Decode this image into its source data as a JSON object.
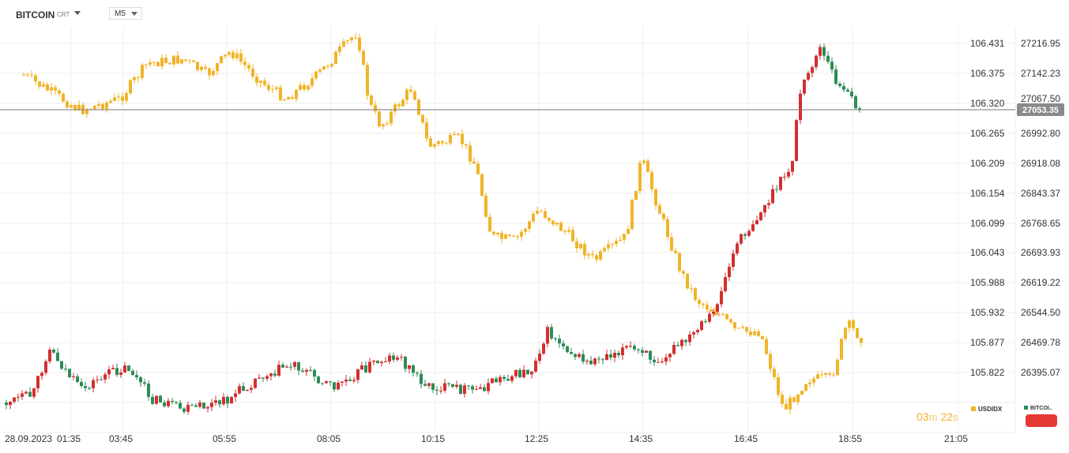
{
  "header": {
    "symbol": "BITCOIN",
    "instrument_type": "CRT",
    "timeframe": "M5"
  },
  "axis_usdidx": [
    "106.431",
    "106.375",
    "106.320",
    "106.265",
    "106.209",
    "106.154",
    "106.099",
    "106.043",
    "105.988",
    "105.932",
    "105.877",
    "105.822"
  ],
  "axis_bitcoin": [
    "27216.95",
    "27142.23",
    "27067.50",
    "26992.80",
    "26918.08",
    "26843.37",
    "26768.65",
    "26693.93",
    "26619.22",
    "26544.50",
    "26469.78",
    "26395.07"
  ],
  "current_price": "27053.35",
  "time_axis": [
    "28.09.2023",
    "01:35",
    "03:45",
    "05:55",
    "08:05",
    "10:15",
    "12:25",
    "14:35",
    "16:45",
    "18:55",
    "21:05"
  ],
  "timer": {
    "minutes": "03",
    "m_unit": "m",
    "seconds": "22",
    "s_unit": "s"
  },
  "legend": {
    "series1": "USDIDX",
    "series2": "BITCOI.."
  },
  "colors": {
    "usdidx": "#f0b429",
    "up": "#2e8b57",
    "down": "#d32f2f",
    "grid": "#ececec",
    "price_badge": "#8a8a8a"
  },
  "chart_data": {
    "type": "line",
    "x": [
      "28.09.2023",
      "01:35",
      "03:45",
      "05:55",
      "08:05",
      "10:15",
      "12:25",
      "14:35",
      "16:45",
      "18:55"
    ],
    "series": [
      {
        "name": "USDIDX",
        "values": [
          106.375,
          106.33,
          106.36,
          106.39,
          106.42,
          106.27,
          106.06,
          106.12,
          105.93,
          105.84
        ]
      },
      {
        "name": "BITCOI..",
        "values": [
          26360,
          26460,
          26400,
          26380,
          26440,
          26390,
          26540,
          26490,
          26800,
          27060
        ]
      }
    ]
  }
}
